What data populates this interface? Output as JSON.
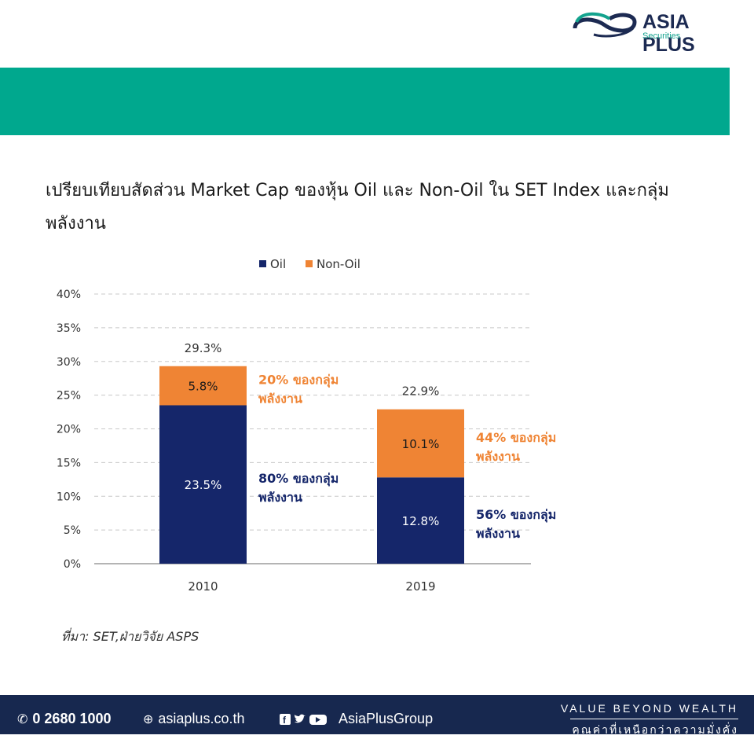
{
  "brand": {
    "name": "ASIA PLUS",
    "sub": "Securities"
  },
  "title": "เปรียบเทียบสัดส่วน Market Cap ของหุ้น Oil และ Non-Oil ใน SET Index และกลุ่มพลังงาน",
  "source": "ที่มา: SET,ฝ่ายวิจัย ASPS",
  "footer": {
    "phone": "0 2680 1000",
    "website": "asiaplus.co.th",
    "social": "AsiaPlusGroup",
    "tagline_en": "VALUE BEYOND WEALTH",
    "tagline_th": "คุณค่าที่เหนือกว่าความมั่งคั่ง"
  },
  "colors": {
    "oil": "#15266a",
    "non_oil": "#ef8434",
    "band": "#00a88e",
    "footer": "#17284f"
  },
  "chart_data": {
    "type": "bar",
    "stacked": true,
    "categories": [
      "2010",
      "2019"
    ],
    "series": [
      {
        "name": "Oil",
        "values": [
          23.5,
          12.8
        ],
        "labels": [
          "23.5%",
          "12.8%"
        ],
        "color": "#15266a"
      },
      {
        "name": "Non-Oil",
        "values": [
          5.8,
          10.1
        ],
        "labels": [
          "5.8%",
          "10.1%"
        ],
        "color": "#ef8434"
      }
    ],
    "totals": [
      "29.3%",
      "22.9%"
    ],
    "annotations": [
      {
        "category": "2010",
        "series": "Oil",
        "line1": "80% ของกลุ่ม",
        "line2": "พลังงาน"
      },
      {
        "category": "2010",
        "series": "Non-Oil",
        "line1": "20% ของกลุ่ม",
        "line2": "พลังงาน"
      },
      {
        "category": "2019",
        "series": "Oil",
        "line1": "56% ของกลุ่ม",
        "line2": "พลังงาน"
      },
      {
        "category": "2019",
        "series": "Non-Oil",
        "line1": "44% ของกลุ่ม",
        "line2": "พลังงาน"
      }
    ],
    "yticks": [
      "0%",
      "5%",
      "10%",
      "15%",
      "20%",
      "25%",
      "30%",
      "35%",
      "40%"
    ],
    "ylim": [
      0,
      40
    ],
    "grid": true,
    "legend": "top"
  }
}
